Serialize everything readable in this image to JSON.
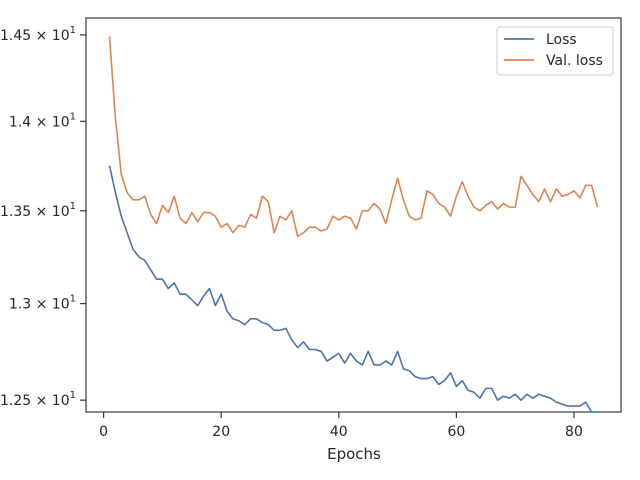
{
  "chart_data": {
    "type": "line",
    "xlabel": "Epochs",
    "ylabel": "",
    "xlim": [
      -3,
      88
    ],
    "ylim": [
      12.44,
      14.6
    ],
    "y_scale": "log",
    "grid": false,
    "legend_position": "top-right",
    "x_ticks": [
      0,
      20,
      40,
      60,
      80
    ],
    "x_tick_labels": [
      "0",
      "20",
      "40",
      "60",
      "80"
    ],
    "y_ticks": [
      12.5,
      13.0,
      13.5,
      14.0,
      14.5
    ],
    "y_tick_labels": [
      {
        "mant": "1.25",
        "exp": "1"
      },
      {
        "mant": "1.3",
        "exp": "1"
      },
      {
        "mant": "1.35",
        "exp": "1"
      },
      {
        "mant": "1.4",
        "exp": "1"
      },
      {
        "mant": "1.45",
        "exp": "1"
      }
    ],
    "x": [
      1,
      2,
      3,
      4,
      5,
      6,
      7,
      8,
      9,
      10,
      11,
      12,
      13,
      14,
      15,
      16,
      17,
      18,
      19,
      20,
      21,
      22,
      23,
      24,
      25,
      26,
      27,
      28,
      29,
      30,
      31,
      32,
      33,
      34,
      35,
      36,
      37,
      38,
      39,
      40,
      41,
      42,
      43,
      44,
      45,
      46,
      47,
      48,
      49,
      50,
      51,
      52,
      53,
      54,
      55,
      56,
      57,
      58,
      59,
      60,
      61,
      62,
      63,
      64,
      65,
      66,
      67,
      68,
      69,
      70,
      71,
      72,
      73,
      74,
      75,
      76,
      77,
      78,
      79,
      80,
      81,
      82,
      83,
      84
    ],
    "series": [
      {
        "name": "Loss",
        "color": "#4c72b0",
        "values": [
          13.75,
          13.6,
          13.47,
          13.38,
          13.29,
          13.25,
          13.23,
          13.18,
          13.13,
          13.13,
          13.08,
          13.11,
          13.05,
          13.05,
          13.02,
          12.99,
          13.04,
          13.08,
          12.99,
          13.05,
          12.96,
          12.92,
          12.91,
          12.89,
          12.92,
          12.92,
          12.9,
          12.89,
          12.86,
          12.86,
          12.87,
          12.81,
          12.77,
          12.8,
          12.76,
          12.76,
          12.75,
          12.7,
          12.72,
          12.74,
          12.69,
          12.74,
          12.7,
          12.68,
          12.75,
          12.68,
          12.68,
          12.7,
          12.68,
          12.75,
          12.66,
          12.65,
          12.62,
          12.61,
          12.61,
          12.62,
          12.58,
          12.6,
          12.64,
          12.57,
          12.6,
          12.55,
          12.54,
          12.51,
          12.56,
          12.56,
          12.5,
          12.52,
          12.51,
          12.53,
          12.5,
          12.53,
          12.51,
          12.53,
          12.52,
          12.51,
          12.49,
          12.48,
          12.47,
          12.47,
          12.47,
          12.49,
          12.44,
          12.44
        ]
      },
      {
        "name": "Val. loss",
        "color": "#dd8452",
        "values": [
          14.49,
          14.02,
          13.7,
          13.6,
          13.56,
          13.56,
          13.58,
          13.48,
          13.43,
          13.53,
          13.49,
          13.58,
          13.46,
          13.43,
          13.49,
          13.44,
          13.49,
          13.49,
          13.47,
          13.41,
          13.43,
          13.38,
          13.42,
          13.41,
          13.48,
          13.46,
          13.58,
          13.55,
          13.38,
          13.47,
          13.45,
          13.5,
          13.36,
          13.38,
          13.41,
          13.41,
          13.39,
          13.4,
          13.47,
          13.45,
          13.47,
          13.46,
          13.4,
          13.5,
          13.5,
          13.54,
          13.51,
          13.43,
          13.56,
          13.68,
          13.56,
          13.47,
          13.45,
          13.46,
          13.61,
          13.59,
          13.54,
          13.52,
          13.47,
          13.58,
          13.66,
          13.58,
          13.52,
          13.5,
          13.53,
          13.55,
          13.51,
          13.54,
          13.52,
          13.52,
          13.69,
          13.64,
          13.59,
          13.55,
          13.62,
          13.55,
          13.62,
          13.58,
          13.59,
          13.61,
          13.57,
          13.64,
          13.64,
          13.52
        ]
      }
    ]
  }
}
